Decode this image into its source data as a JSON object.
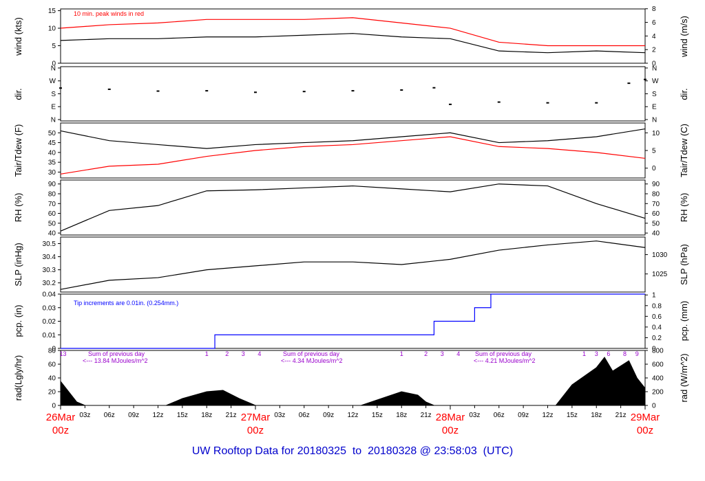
{
  "footer": {
    "label": "UW Rooftop Data for",
    "start": "20180325",
    "sep": "to",
    "end": "20180328",
    "at": "@",
    "time": "23:58:03",
    "tz": "(UTC)"
  },
  "colors": {
    "primary": "#000000",
    "accent": "#ff0000",
    "precip": "#0000ff",
    "rad_text": "#9900cc",
    "footer": "#0000cc"
  },
  "chart_data": [
    {
      "type": "line",
      "panel": "wind",
      "ylabel": "wind (kts)",
      "ylabel_right": "wind (m/s)",
      "ylim": [
        0,
        15.5
      ],
      "yticks": [
        0,
        5,
        10,
        15
      ],
      "yticks_right": [
        0,
        2,
        4,
        6,
        8
      ],
      "annotation": "10 min. peak winds in red",
      "x_hours": [
        0,
        6,
        12,
        18,
        24,
        30,
        36,
        42,
        48,
        54,
        60,
        66,
        72
      ],
      "series": [
        {
          "values": [
            6.5,
            7,
            7,
            7.5,
            7.5,
            8,
            8.5,
            7.5,
            7,
            3.5,
            3,
            3.5,
            3
          ]
        },
        {
          "values": [
            10,
            11,
            11.5,
            12.5,
            12.5,
            12.5,
            13,
            11.5,
            10,
            6,
            5,
            5,
            5
          ]
        }
      ]
    },
    {
      "type": "scatter",
      "panel": "dir",
      "ylabel": "dir.",
      "ylabel_right": "dir.",
      "ylim": [
        0,
        360
      ],
      "yticks": [
        "N",
        "E",
        "S",
        "W",
        "N"
      ],
      "x_hours": [
        0,
        6,
        12,
        18,
        24,
        30,
        36,
        42,
        46,
        48,
        54,
        60,
        66,
        70,
        72
      ],
      "series": [
        {
          "values": [
            218,
            210,
            198,
            200,
            190,
            195,
            200,
            205,
            220,
            110,
            125,
            120,
            120,
            250,
            275
          ]
        }
      ]
    },
    {
      "type": "line",
      "panel": "temp",
      "ylabel": "Tair/Tdew (F)",
      "ylabel_right": "Tair/Tdew (C)",
      "ylim": [
        27,
        55
      ],
      "yticks": [
        30,
        35,
        40,
        45,
        50
      ],
      "yticks_right": [
        0,
        5,
        10
      ],
      "x_hours": [
        0,
        6,
        12,
        18,
        24,
        30,
        36,
        42,
        48,
        54,
        60,
        66,
        72
      ],
      "series": [
        {
          "values": [
            51,
            46,
            44,
            42,
            44,
            45,
            46,
            48,
            50,
            45,
            46,
            48,
            52
          ]
        },
        {
          "values": [
            29,
            33,
            34,
            38,
            41,
            43,
            44,
            46,
            48,
            43,
            42,
            40,
            37
          ]
        }
      ]
    },
    {
      "type": "line",
      "panel": "rh",
      "ylabel": "RH (%)",
      "ylabel_right": "RH (%)",
      "ylim": [
        38,
        94
      ],
      "yticks": [
        40,
        50,
        60,
        70,
        80,
        90
      ],
      "yticks_right": [
        40,
        50,
        60,
        70,
        80,
        90
      ],
      "x_hours": [
        0,
        6,
        12,
        18,
        24,
        30,
        36,
        42,
        48,
        54,
        60,
        66,
        72
      ],
      "series": [
        {
          "values": [
            42,
            63,
            68,
            83,
            84,
            86,
            88,
            85,
            82,
            90,
            88,
            70,
            55
          ]
        }
      ]
    },
    {
      "type": "line",
      "panel": "slp",
      "ylabel": "SLP (inHg)",
      "ylabel_right": "SLP (hPa)",
      "ylim": [
        30.13,
        30.55
      ],
      "yticks": [
        30.2,
        30.3,
        30.4,
        30.5
      ],
      "yticks_right": [
        1025,
        1030
      ],
      "x_hours": [
        0,
        6,
        12,
        18,
        24,
        30,
        36,
        42,
        48,
        54,
        60,
        66,
        72
      ],
      "series": [
        {
          "values": [
            30.15,
            30.22,
            30.24,
            30.3,
            30.33,
            30.36,
            30.36,
            30.34,
            30.38,
            30.45,
            30.49,
            30.52,
            30.47
          ]
        }
      ]
    },
    {
      "type": "line",
      "panel": "pcp",
      "ylabel": "pcp. (in)",
      "ylabel_right": "pcp. (mm)",
      "ylim": [
        0,
        0.04
      ],
      "yticks": [
        0,
        0.01,
        0.02,
        0.03,
        0.04
      ],
      "yticks_right": [
        0,
        0.2,
        0.4,
        0.6,
        0.8,
        1
      ],
      "annotation": "Tip increments are 0.01in. (0.254mm.)",
      "x_hours": [
        0,
        19,
        19,
        46,
        46,
        51,
        51,
        53,
        53,
        72
      ],
      "series": [
        {
          "values": [
            0,
            0,
            0.01,
            0.01,
            0.02,
            0.02,
            0.03,
            0.03,
            0.04,
            0.04
          ]
        }
      ]
    },
    {
      "type": "area",
      "panel": "rad",
      "ylabel": "rad(Lgly/hr)",
      "ylabel_right": "rad (W/m^2)",
      "ylim": [
        0,
        80
      ],
      "yticks": [
        0,
        20,
        40,
        60,
        80
      ],
      "yticks_right": [
        0,
        200,
        400,
        600,
        800
      ],
      "annotations": [
        {
          "text": "Sum of previous day",
          "sub": "<--- 13.84 MJoules/m^2"
        },
        {
          "text": "Sum of previous day",
          "sub": "<--- 4.34 MJoules/m^2"
        },
        {
          "text": "Sum of previous day",
          "sub": "<--- 4.21 MJoules/m^2"
        }
      ],
      "x_hours": [
        0,
        2,
        3,
        13,
        15,
        18,
        20,
        22,
        24,
        37,
        40,
        42,
        44,
        45,
        46,
        61,
        63,
        66,
        67,
        68,
        70,
        71,
        72
      ],
      "series": [
        {
          "values": [
            35,
            5,
            0,
            0,
            10,
            20,
            22,
            10,
            0,
            0,
            12,
            20,
            15,
            5,
            0,
            0,
            30,
            55,
            70,
            50,
            65,
            40,
            25
          ]
        }
      ]
    }
  ],
  "x_axis": {
    "hour_labels": [
      "03z",
      "06z",
      "09z",
      "12z",
      "15z",
      "18z",
      "21z"
    ],
    "days": [
      {
        "hour": 0,
        "date": "26Mar",
        "time": "00z"
      },
      {
        "hour": 24,
        "date": "27Mar",
        "time": "00z"
      },
      {
        "hour": 48,
        "date": "28Mar",
        "time": "00z"
      },
      {
        "hour": 72,
        "date": "29Mar",
        "time": "00z"
      }
    ],
    "rad_marks": [
      "13",
      "1",
      "2",
      "3",
      "4",
      "1",
      "2",
      "3",
      "4",
      "1",
      "3",
      "6",
      "8",
      "9"
    ]
  }
}
